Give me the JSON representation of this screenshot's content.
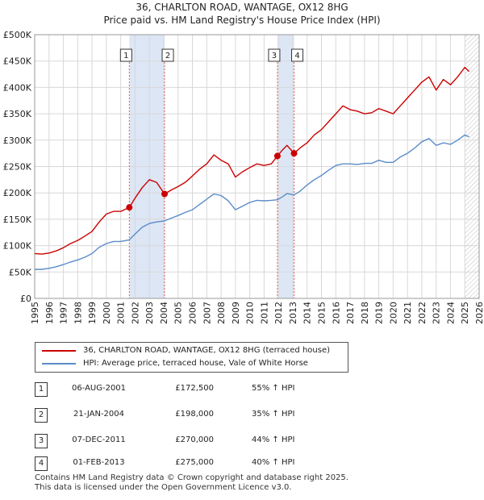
{
  "title_line1": "36, CHARLTON ROAD, WANTAGE, OX12 8HG",
  "title_line2": "Price paid vs. HM Land Registry's House Price Index (HPI)",
  "chart_data": {
    "type": "line",
    "xlim": [
      1995,
      2026
    ],
    "ylim": [
      0,
      500000
    ],
    "y_ticks": [
      0,
      50000,
      100000,
      150000,
      200000,
      250000,
      300000,
      350000,
      400000,
      450000,
      500000
    ],
    "y_tick_labels": [
      "£0",
      "£50K",
      "£100K",
      "£150K",
      "£200K",
      "£250K",
      "£300K",
      "£350K",
      "£400K",
      "£450K",
      "£500K"
    ],
    "x_ticks": [
      1995,
      1996,
      1997,
      1998,
      1999,
      2000,
      2001,
      2002,
      2003,
      2004,
      2005,
      2006,
      2007,
      2008,
      2009,
      2010,
      2011,
      2012,
      2013,
      2014,
      2015,
      2016,
      2017,
      2018,
      2019,
      2020,
      2021,
      2022,
      2023,
      2024,
      2025,
      2026
    ],
    "x_tick_labels": [
      "1995",
      "1996",
      "1997",
      "1998",
      "1999",
      "2000",
      "2001",
      "2002",
      "2003",
      "2004",
      "2005",
      "2006",
      "2007",
      "2008",
      "2009",
      "2010",
      "2011",
      "2012",
      "2013",
      "2014",
      "2015",
      "2016",
      "2017",
      "2018",
      "2019",
      "2020",
      "2021",
      "2022",
      "2023",
      "2024",
      "2025",
      "2026"
    ],
    "grid": true,
    "series": [
      {
        "name": "36, CHARLTON ROAD, WANTAGE, OX12 8HG (terraced house)",
        "color": "#cc0000",
        "x": [
          1995.0,
          1995.5,
          1996.0,
          1996.5,
          1997.0,
          1997.5,
          1998.0,
          1998.5,
          1999.0,
          1999.5,
          2000.0,
          2000.5,
          2001.0,
          2001.6,
          2002.0,
          2002.5,
          2003.0,
          2003.5,
          2004.06,
          2004.5,
          2005.0,
          2005.5,
          2006.0,
          2006.5,
          2007.0,
          2007.5,
          2008.0,
          2008.5,
          2009.0,
          2009.5,
          2010.0,
          2010.5,
          2011.0,
          2011.5,
          2011.93,
          2012.3,
          2012.6,
          2013.09,
          2013.5,
          2014.0,
          2014.5,
          2015.0,
          2015.5,
          2016.0,
          2016.5,
          2017.0,
          2017.5,
          2018.0,
          2018.5,
          2019.0,
          2019.5,
          2020.0,
          2020.5,
          2021.0,
          2021.5,
          2022.0,
          2022.5,
          2023.0,
          2023.5,
          2024.0,
          2024.5,
          2025.0,
          2025.3
        ],
        "values": [
          85000,
          84000,
          86000,
          90000,
          96000,
          104000,
          110000,
          118000,
          127000,
          145000,
          160000,
          165000,
          165000,
          172500,
          190000,
          210000,
          225000,
          220000,
          198000,
          205000,
          212000,
          220000,
          232000,
          245000,
          255000,
          272000,
          262000,
          255000,
          230000,
          240000,
          248000,
          255000,
          252000,
          255000,
          270000,
          282000,
          290000,
          275000,
          285000,
          295000,
          310000,
          320000,
          335000,
          350000,
          365000,
          358000,
          355000,
          350000,
          352000,
          360000,
          355000,
          350000,
          365000,
          380000,
          395000,
          410000,
          420000,
          395000,
          415000,
          405000,
          420000,
          438000,
          430000
        ]
      },
      {
        "name": "HPI: Average price, terraced house, Vale of White Horse",
        "color": "#5b8cc8",
        "x": [
          1995.0,
          1995.5,
          1996.0,
          1996.5,
          1997.0,
          1997.5,
          1998.0,
          1998.5,
          1999.0,
          1999.5,
          2000.0,
          2000.5,
          2001.0,
          2001.6,
          2002.0,
          2002.5,
          2003.0,
          2003.5,
          2004.06,
          2004.5,
          2005.0,
          2005.5,
          2006.0,
          2006.5,
          2007.0,
          2007.5,
          2008.0,
          2008.5,
          2009.0,
          2009.5,
          2010.0,
          2010.5,
          2011.0,
          2011.5,
          2011.93,
          2012.3,
          2012.6,
          2013.09,
          2013.5,
          2014.0,
          2014.5,
          2015.0,
          2015.5,
          2016.0,
          2016.5,
          2017.0,
          2017.5,
          2018.0,
          2018.5,
          2019.0,
          2019.5,
          2020.0,
          2020.5,
          2021.0,
          2021.5,
          2022.0,
          2022.5,
          2023.0,
          2023.5,
          2024.0,
          2024.5,
          2025.0,
          2025.3
        ],
        "values": [
          55000,
          55000,
          57000,
          60000,
          64000,
          69000,
          73000,
          78000,
          85000,
          97000,
          104000,
          108000,
          108000,
          111000,
          122000,
          135000,
          142000,
          145000,
          147000,
          152000,
          157000,
          163000,
          168000,
          178000,
          188000,
          198000,
          195000,
          185000,
          168000,
          175000,
          182000,
          186000,
          185000,
          186000,
          187000,
          193000,
          199000,
          196000,
          203000,
          215000,
          225000,
          233000,
          243000,
          252000,
          255000,
          255000,
          254000,
          256000,
          256000,
          262000,
          258000,
          258000,
          268000,
          275000,
          285000,
          297000,
          303000,
          290000,
          295000,
          292000,
          300000,
          310000,
          306000
        ]
      }
    ],
    "sales": [
      {
        "id": "1",
        "x": 2001.6,
        "value": 172500
      },
      {
        "id": "2",
        "x": 2004.06,
        "value": 198000
      },
      {
        "id": "3",
        "x": 2011.93,
        "value": 270000
      },
      {
        "id": "4",
        "x": 2013.09,
        "value": 275000
      }
    ],
    "shaded_ranges": [
      [
        2001.6,
        2004.06
      ],
      [
        2011.93,
        2013.09
      ]
    ],
    "hatch_from": 2025.0
  },
  "legend": {
    "property_label": "36, CHARLTON ROAD, WANTAGE, OX12 8HG (terraced house)",
    "hpi_label": "HPI: Average price, terraced house, Vale of White Horse",
    "property_color": "#cc0000",
    "hpi_color": "#5b8cc8"
  },
  "transactions": [
    {
      "num": "1",
      "date": "06-AUG-2001",
      "price": "£172,500",
      "hpi": "55% ↑ HPI"
    },
    {
      "num": "2",
      "date": "21-JAN-2004",
      "price": "£198,000",
      "hpi": "35% ↑ HPI"
    },
    {
      "num": "3",
      "date": "07-DEC-2011",
      "price": "£270,000",
      "hpi": "44% ↑ HPI"
    },
    {
      "num": "4",
      "date": "01-FEB-2013",
      "price": "£275,000",
      "hpi": "40% ↑ HPI"
    }
  ],
  "footer": {
    "line1": "Contains HM Land Registry data © Crown copyright and database right 2025.",
    "line2": "This data is licensed under the Open Government Licence v3.0."
  }
}
